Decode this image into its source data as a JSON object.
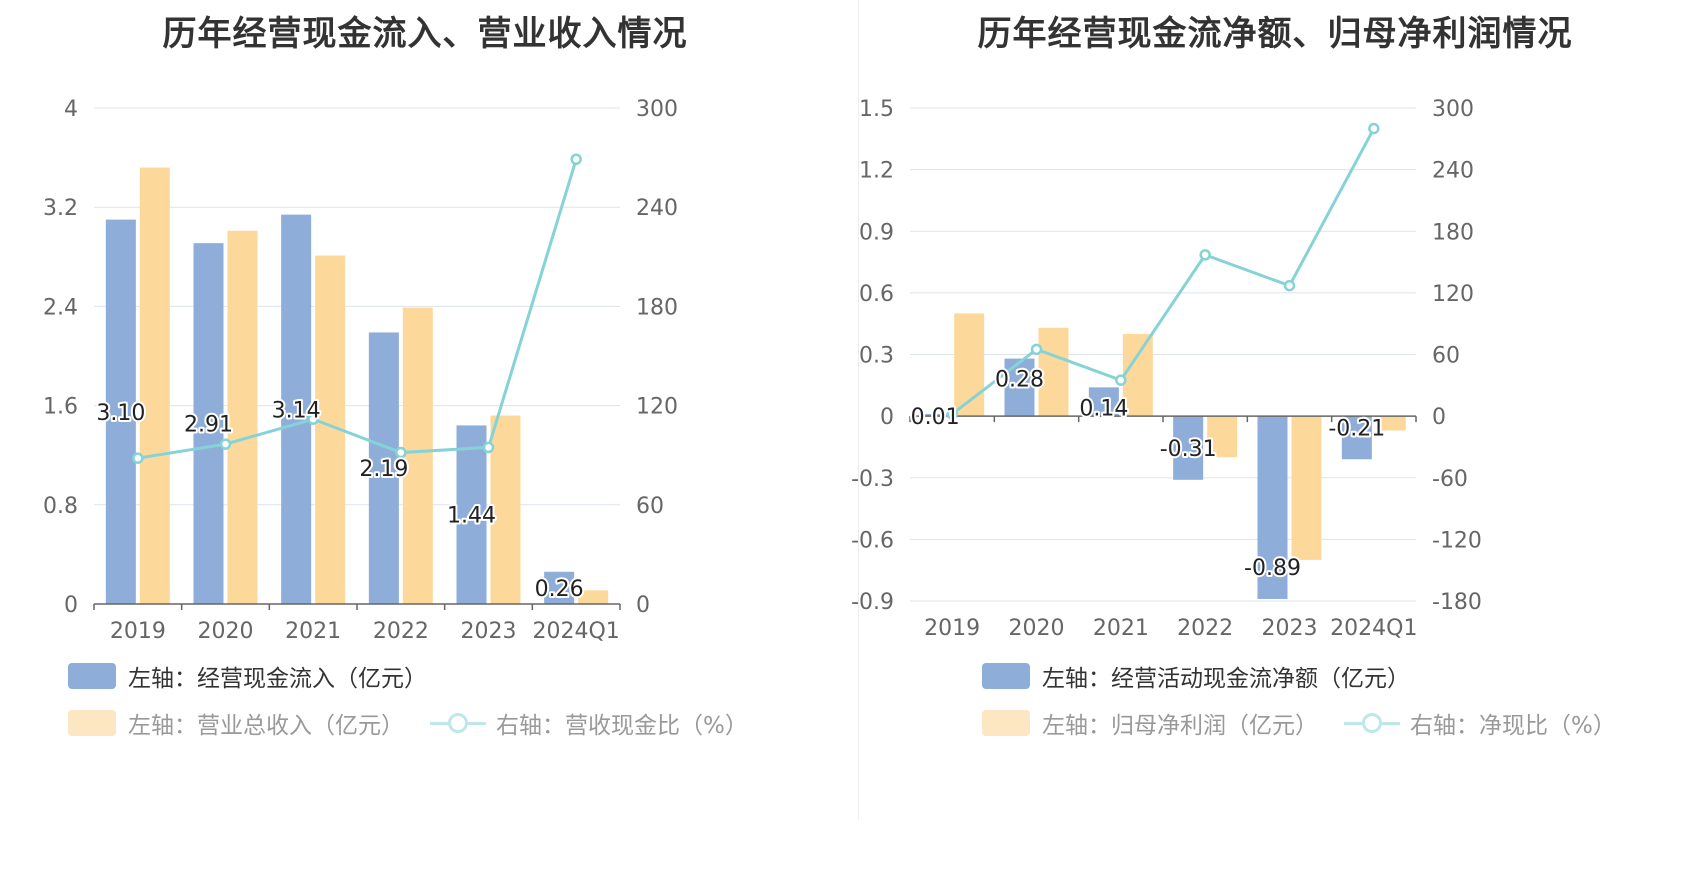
{
  "colors": {
    "bar_primary": "#8eadd9",
    "bar_secondary": "#fcd99a",
    "bar_secondary_legend": "#fde7c2",
    "line": "#86d3d7",
    "line_legend": "#bfe6ea",
    "grid": "#dde3ee",
    "axis": "#666666"
  },
  "chart_data": [
    {
      "type": "bar",
      "title": "历年经营现金流入、营业收入情况",
      "categories": [
        "2019",
        "2020",
        "2021",
        "2022",
        "2023",
        "2024Q1"
      ],
      "series": [
        {
          "name": "左轴：经营现金流入（亿元）",
          "axis": "left",
          "values": [
            3.1,
            2.91,
            3.14,
            2.19,
            1.44,
            0.26
          ],
          "data_labels": [
            "3.10",
            "2.91",
            "3.14",
            "2.19",
            "1.44",
            "0.26"
          ]
        },
        {
          "name": "左轴：营业总收入（亿元）",
          "axis": "left",
          "values": [
            3.52,
            3.01,
            2.81,
            2.39,
            1.52,
            0.11
          ]
        },
        {
          "name": "右轴：营收现金比（%）",
          "axis": "right",
          "type": "line",
          "values": [
            88.2,
            96.7,
            111.8,
            91.6,
            94.7,
            269.0
          ]
        }
      ],
      "left_axis": {
        "ylim": [
          0,
          4
        ],
        "ticks": [
          "4",
          "3.2",
          "2.4",
          "1.6",
          "0.8",
          "0"
        ]
      },
      "right_axis": {
        "ylim": [
          0,
          300
        ],
        "ticks": [
          "300",
          "240",
          "180",
          "120",
          "60",
          "0"
        ]
      },
      "grid": true,
      "legend_position": "bottom"
    },
    {
      "type": "bar",
      "title": "历年经营现金流净额、归母净利润情况",
      "categories": [
        "2019",
        "2020",
        "2021",
        "2022",
        "2023",
        "2024Q1"
      ],
      "series": [
        {
          "name": "左轴：经营活动现金流净额（亿元）",
          "axis": "left",
          "values": [
            0.01,
            0.28,
            0.14,
            -0.31,
            -0.89,
            -0.21
          ],
          "data_labels": [
            "0.01",
            "0.28",
            "0.14",
            "-0.31",
            "-0.89",
            "-0.21"
          ]
        },
        {
          "name": "左轴：归母净利润（亿元）",
          "axis": "left",
          "values": [
            0.5,
            0.43,
            0.4,
            -0.2,
            -0.7,
            -0.07
          ]
        },
        {
          "name": "右轴：净现比（%）",
          "axis": "right",
          "type": "line",
          "values": [
            2,
            65,
            35,
            157,
            127,
            280
          ]
        }
      ],
      "left_axis": {
        "ylim": [
          -0.9,
          1.5
        ],
        "ticks": [
          "1.5",
          "1.2",
          "0.9",
          "0.6",
          "0.3",
          "0",
          "-0.3",
          "-0.6",
          "-0.9"
        ]
      },
      "right_axis": {
        "ylim": [
          -180,
          300
        ],
        "ticks": [
          "300",
          "240",
          "180",
          "120",
          "60",
          "0",
          "-60",
          "-120",
          "-180"
        ]
      },
      "grid": true,
      "legend_position": "bottom"
    }
  ]
}
